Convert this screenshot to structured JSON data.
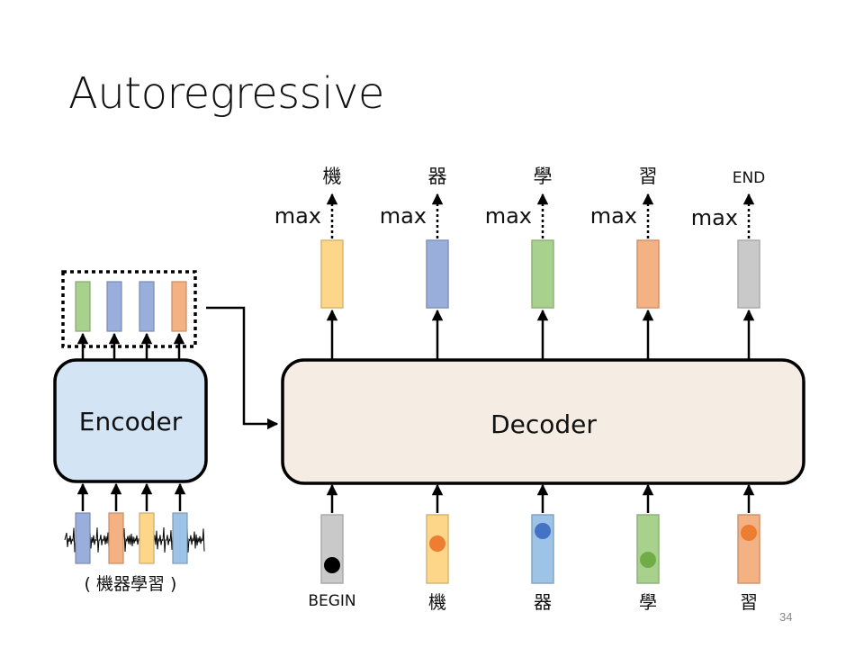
{
  "slide": {
    "title": "Autoregressive",
    "page_number": "34"
  },
  "encoder": {
    "label": "Encoder",
    "input_caption": "( 機器學習 )",
    "input_vector_colors": [
      "#9aaedb",
      "#f4b183",
      "#fdd68a",
      "#9dc3e6"
    ],
    "output_vector_colors": [
      "#a9d18e",
      "#9aaedb",
      "#9aaedb",
      "#f4b183"
    ],
    "fill_color": "#d3e5f5"
  },
  "decoder": {
    "label": "Decoder",
    "fill_color": "#f5ede3",
    "steps": [
      {
        "input_label": "BEGIN",
        "input_color": "#c9c9c9",
        "input_dot_color": "#000000",
        "output_color": "#fdd68a",
        "op_label": "max",
        "output_token": "機"
      },
      {
        "input_label": "機",
        "input_color": "#fdd68a",
        "input_dot_color": "#ed7d31",
        "output_color": "#9aaedb",
        "op_label": "max",
        "output_token": "器"
      },
      {
        "input_label": "器",
        "input_color": "#9dc3e6",
        "input_dot_color": "#4472c4",
        "output_color": "#a9d18e",
        "op_label": "max",
        "output_token": "學"
      },
      {
        "input_label": "學",
        "input_color": "#a9d18e",
        "input_dot_color": "#70ad47",
        "output_color": "#f4b183",
        "op_label": "max",
        "output_token": "習"
      },
      {
        "input_label": "習",
        "input_color": "#f4b183",
        "input_dot_color": "#ed7d31",
        "output_color": "#c9c9c9",
        "op_label": "max",
        "output_token": "END"
      }
    ]
  }
}
